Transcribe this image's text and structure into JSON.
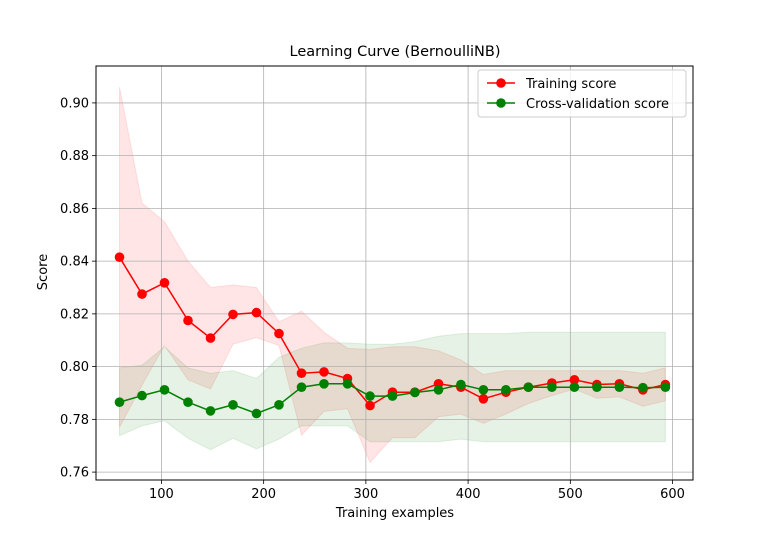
{
  "chart_data": {
    "type": "line",
    "title": "Learning Curve (BernoulliNB)",
    "xlabel": "Training examples",
    "ylabel": "Score",
    "xlim": [
      36,
      620
    ],
    "ylim": [
      0.757,
      0.914
    ],
    "xticks": [
      100,
      200,
      300,
      400,
      500,
      600
    ],
    "yticks": [
      0.76,
      0.78,
      0.8,
      0.82,
      0.84,
      0.86,
      0.88,
      0.9
    ],
    "grid": true,
    "legend_position": "top-right",
    "x": [
      59,
      81,
      103,
      126,
      148,
      170,
      193,
      215,
      237,
      259,
      282,
      304,
      326,
      348,
      371,
      393,
      415,
      437,
      459,
      482,
      504,
      526,
      548,
      571,
      593
    ],
    "series": [
      {
        "name": "Training score",
        "color": "#ff0000",
        "values": [
          0.8415,
          0.8275,
          0.8318,
          0.8175,
          0.8108,
          0.8198,
          0.8205,
          0.8125,
          0.7975,
          0.798,
          0.7955,
          0.7852,
          0.7903,
          0.7903,
          0.7935,
          0.7922,
          0.7878,
          0.7903,
          0.7922,
          0.7938,
          0.795,
          0.7932,
          0.7935,
          0.7912,
          0.7932
        ],
        "upper": [
          0.906,
          0.862,
          0.855,
          0.84,
          0.83,
          0.831,
          0.83,
          0.817,
          0.821,
          0.813,
          0.807,
          0.8065,
          0.8075,
          0.8075,
          0.806,
          0.8025,
          0.797,
          0.7985,
          0.7985,
          0.7985,
          0.7985,
          0.7985,
          0.7985,
          0.7975,
          0.7995
        ],
        "lower": [
          0.777,
          0.793,
          0.808,
          0.795,
          0.7915,
          0.8085,
          0.811,
          0.808,
          0.774,
          0.783,
          0.784,
          0.7637,
          0.773,
          0.773,
          0.781,
          0.782,
          0.7785,
          0.782,
          0.786,
          0.789,
          0.7915,
          0.788,
          0.7885,
          0.785,
          0.787
        ]
      },
      {
        "name": "Cross-validation score",
        "color": "#008000",
        "values": [
          0.7865,
          0.789,
          0.7912,
          0.7865,
          0.7832,
          0.7855,
          0.7822,
          0.7855,
          0.7922,
          0.7935,
          0.7935,
          0.7888,
          0.7888,
          0.7902,
          0.7912,
          0.7932,
          0.7912,
          0.7912,
          0.7922,
          0.7922,
          0.7922,
          0.7922,
          0.7922,
          0.792,
          0.7922
        ],
        "upper": [
          0.7995,
          0.8005,
          0.8075,
          0.7995,
          0.7975,
          0.7985,
          0.7955,
          0.8035,
          0.807,
          0.809,
          0.809,
          0.8085,
          0.8085,
          0.8095,
          0.8115,
          0.8125,
          0.8125,
          0.8125,
          0.813,
          0.813,
          0.813,
          0.813,
          0.813,
          0.813,
          0.813
        ],
        "lower": [
          0.7738,
          0.7775,
          0.7795,
          0.7728,
          0.7685,
          0.7728,
          0.7688,
          0.7725,
          0.7775,
          0.7775,
          0.7775,
          0.7715,
          0.7715,
          0.7715,
          0.7715,
          0.7725,
          0.7715,
          0.7715,
          0.7715,
          0.7715,
          0.7715,
          0.7715,
          0.7715,
          0.7715,
          0.7715
        ]
      }
    ]
  }
}
